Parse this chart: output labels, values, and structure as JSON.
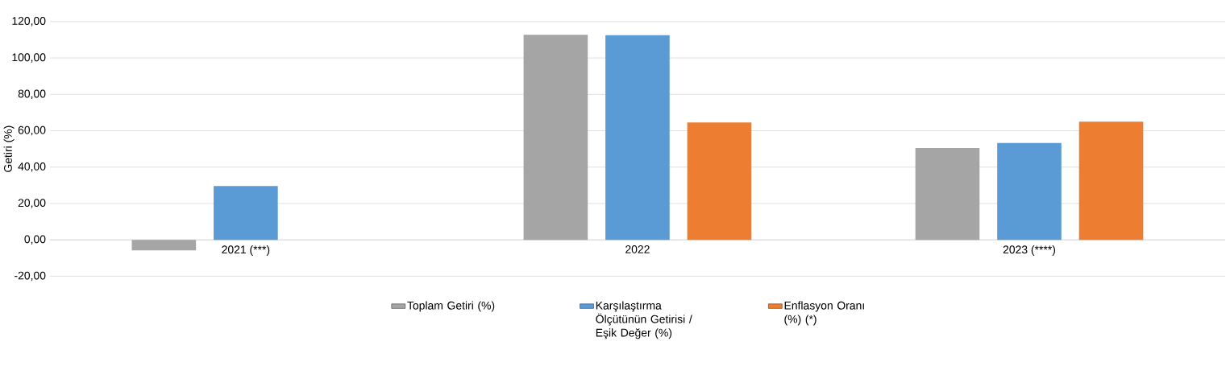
{
  "chart_data": {
    "type": "bar",
    "ylabel": "Getiri (%)",
    "categories": [
      "2021 (***)",
      "2022",
      "2023 (****)"
    ],
    "series": [
      {
        "name": "Toplam Getiri (%)",
        "color": "#a5a5a5",
        "values": [
          -5.8,
          112.8,
          50.5
        ]
      },
      {
        "name": "Karşılaştırma Ölçütünün Getirisi / Eşik Değer (%)",
        "color": "#5b9bd5",
        "values": [
          29.6,
          112.5,
          53.3
        ]
      },
      {
        "name": "Enflasyon Oranı (%) (*)",
        "color": "#ed7d31",
        "values": [
          null,
          64.5,
          65.0
        ]
      }
    ],
    "ylim": [
      -20,
      120
    ],
    "yticks": [
      {
        "value": -20,
        "label": "-20,00"
      },
      {
        "value": 0,
        "label": "0,00"
      },
      {
        "value": 20,
        "label": "20,00"
      },
      {
        "value": 40,
        "label": "40,00"
      },
      {
        "value": 60,
        "label": "60,00"
      },
      {
        "value": 80,
        "label": "80,00"
      },
      {
        "value": 100,
        "label": "100,00"
      },
      {
        "value": 120,
        "label": "120,00"
      }
    ],
    "grid": "y",
    "legend": "bottom"
  }
}
